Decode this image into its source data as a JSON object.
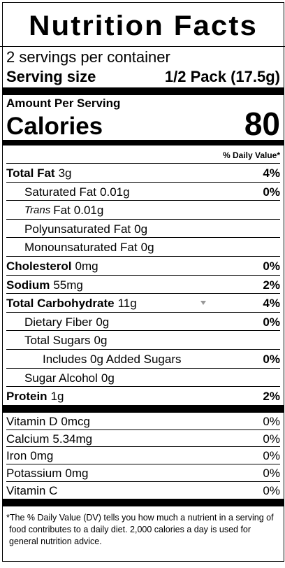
{
  "title": "Nutrition Facts",
  "servings": "2 servings per container",
  "serving_size": {
    "label": "Serving size",
    "value": "1/2 Pack (17.5g)"
  },
  "amount_per_serving": "Amount Per Serving",
  "calories": {
    "label": "Calories",
    "value": "80"
  },
  "dv_header": "% Daily Value*",
  "nutrients": [
    {
      "name": "Total Fat",
      "amount": "3g",
      "dv": "4%",
      "sub": [
        {
          "name": "Saturated Fat",
          "amount": "0.01g",
          "dv": "0%"
        },
        {
          "name_italic": "Trans",
          "name": "Fat",
          "amount": "0.01g"
        },
        {
          "name": "Polyunsaturated Fat",
          "amount": "0g"
        },
        {
          "name": "Monounsaturated Fat",
          "amount": "0g"
        }
      ]
    },
    {
      "name": "Cholesterol",
      "amount": "0mg",
      "dv": "0%"
    },
    {
      "name": "Sodium",
      "amount": "55mg",
      "dv": "2%"
    },
    {
      "name": "Total Carbohydrate",
      "amount": "11g",
      "dv": "4%",
      "sub": [
        {
          "name": "Dietary Fiber",
          "amount": "0g",
          "dv": "0%"
        },
        {
          "name": "Total Sugars",
          "amount": "0g",
          "sub": [
            {
              "name": "Includes 0g Added Sugars",
              "dv": "0%"
            }
          ]
        },
        {
          "name": "Sugar Alcohol",
          "amount": "0g"
        }
      ]
    },
    {
      "name": "Protein",
      "amount": "1g",
      "dv": "2%"
    }
  ],
  "vitamins": [
    {
      "name": "Vitamin D",
      "amount": "0mcg",
      "dv": "0%"
    },
    {
      "name": "Calcium",
      "amount": "5.34mg",
      "dv": "0%"
    },
    {
      "name": "Iron",
      "amount": "0mg",
      "dv": "0%"
    },
    {
      "name": "Potassium",
      "amount": "0mg",
      "dv": "0%"
    },
    {
      "name": "Vitamin C",
      "dv": "0%"
    }
  ],
  "footnote": "The % Daily Value (DV) tells you how much a nutrient in a serving of food contributes to a daily diet. 2,000 calories a day is used for general nutrition advice."
}
